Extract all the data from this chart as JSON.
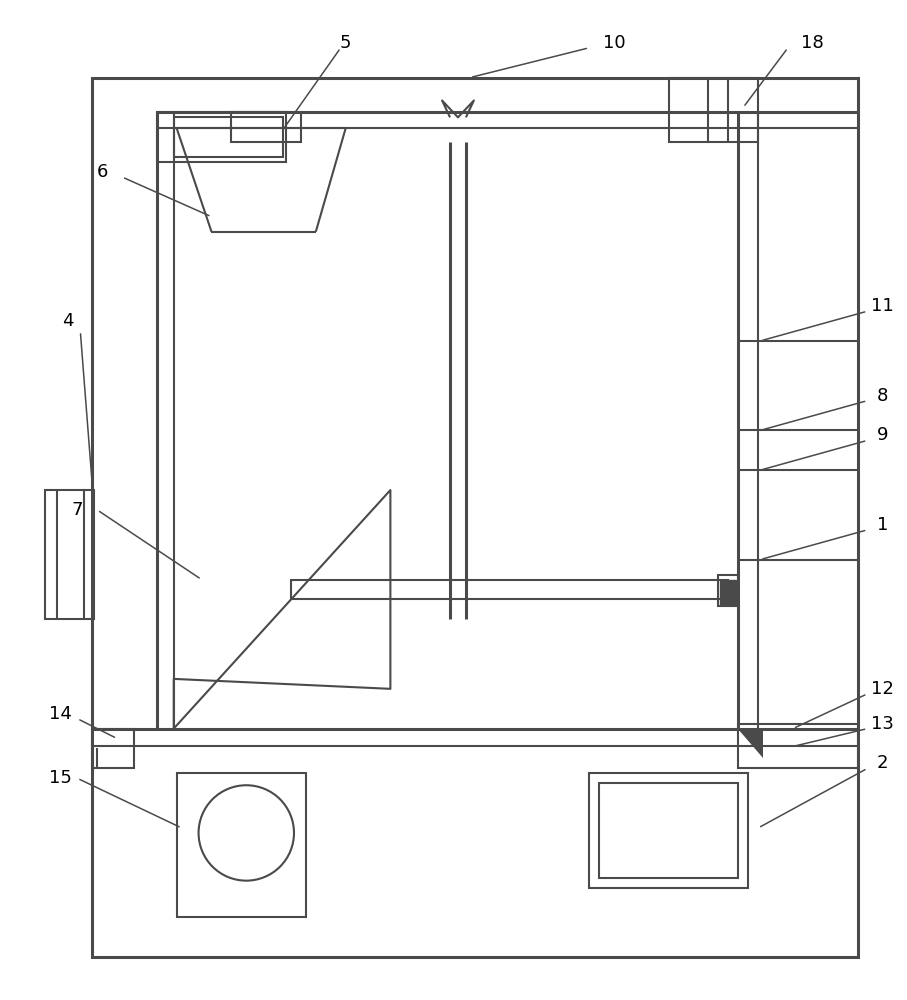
{
  "bg_color": "#ffffff",
  "lc": "#4a4a4a",
  "lw": 1.5,
  "lw2": 2.2,
  "fig_w": 9.07,
  "fig_h": 10.0
}
